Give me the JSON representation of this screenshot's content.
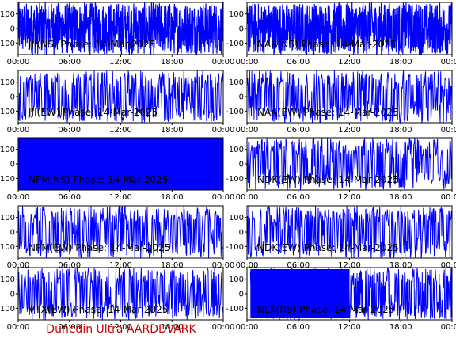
{
  "footer_text": "Dunedin Ultra AARDDVARK",
  "trace_color": "#0000ff",
  "frame_color": "#000000",
  "chart_data": [
    {
      "type": "line",
      "title": "JJI(NS) Phase: 14-Mar-2025",
      "x_ticks": [
        "00:00",
        "06:00",
        "12:00",
        "18:00",
        "00:00"
      ],
      "y_ticks": [
        "100",
        "0",
        "-100"
      ],
      "ylim": [
        -180,
        180
      ],
      "xlim_hours": [
        0,
        24
      ],
      "texture": "dense"
    },
    {
      "type": "line",
      "title": "NAA(NS) Phase: 14-Mar-2025",
      "x_ticks": [
        "00:00",
        "06:00",
        "12:00",
        "18:00",
        "00:00"
      ],
      "y_ticks": [
        "100",
        "0",
        "-100"
      ],
      "ylim": [
        -180,
        180
      ],
      "xlim_hours": [
        0,
        24
      ],
      "texture": "dense"
    },
    {
      "type": "line",
      "title": "JJI(EW) Phase: 14-Mar-2025",
      "x_ticks": [
        "00:00",
        "06:00",
        "12:00",
        "18:00",
        "00:00"
      ],
      "y_ticks": [
        "100",
        "0",
        "-100"
      ],
      "ylim": [
        -180,
        180
      ],
      "xlim_hours": [
        0,
        24
      ],
      "texture": "sparse"
    },
    {
      "type": "line",
      "title": "NAA(EW) Phase: 14-Mar-2025",
      "x_ticks": [
        "00:00",
        "06:00",
        "12:00",
        "18:00",
        "00:00"
      ],
      "y_ticks": [
        "100",
        "0",
        "-100"
      ],
      "ylim": [
        -180,
        180
      ],
      "xlim_hours": [
        0,
        24
      ],
      "texture": "sparse"
    },
    {
      "type": "line",
      "title": "NPM(NS) Phase: 14-Mar-2025",
      "x_ticks": [
        "00:00",
        "06:00",
        "12:00",
        "18:00",
        "00:00"
      ],
      "y_ticks": [
        "100",
        "0",
        "-100"
      ],
      "ylim": [
        -180,
        180
      ],
      "xlim_hours": [
        0,
        24
      ],
      "texture": "solid"
    },
    {
      "type": "line",
      "title": "NDK(EW) Phase: 14-Mar-2025",
      "x_ticks": [
        "00:00",
        "06:00",
        "12:00",
        "18:00",
        "00:00"
      ],
      "y_ticks": [
        "100",
        "0",
        "-100"
      ],
      "ylim": [
        -180,
        180
      ],
      "xlim_hours": [
        0,
        24
      ],
      "texture": "sparse"
    },
    {
      "type": "line",
      "title": "NPM(EW) Phase: 14-Mar-2025",
      "x_ticks": [
        "00:00",
        "06:00",
        "12:00",
        "18:00",
        "00:00"
      ],
      "y_ticks": [
        "100",
        "0",
        "-100"
      ],
      "ylim": [
        -180,
        180
      ],
      "xlim_hours": [
        0,
        24
      ],
      "texture": "sparse"
    },
    {
      "type": "line",
      "title": "NDK(EW) Phase: 14-Mar-2025",
      "x_ticks": [
        "00:00",
        "06:00",
        "12:00",
        "18:00",
        "00:00"
      ],
      "y_ticks": [
        "100",
        "0",
        "-100"
      ],
      "ylim": [
        -180,
        180
      ],
      "xlim_hours": [
        0,
        24
      ],
      "texture": "sparse"
    },
    {
      "type": "line",
      "title": "VTX(EW) Phase: 14-Mar-2025",
      "x_ticks": [
        "00:00",
        "06:00",
        "12:00",
        "18:00",
        "00:00"
      ],
      "y_ticks": [
        "100",
        "0",
        "-100"
      ],
      "ylim": [
        -180,
        180
      ],
      "xlim_hours": [
        0,
        24
      ],
      "texture": "sparse"
    },
    {
      "type": "line",
      "title": "NLK(NS) Phase: 14-Mar-2025",
      "x_ticks": [
        "00:00",
        "06:00",
        "12:00",
        "18:00",
        "00:00"
      ],
      "y_ticks": [
        "100",
        "0",
        "-100"
      ],
      "ylim": [
        -180,
        180
      ],
      "xlim_hours": [
        0,
        24
      ],
      "texture": "partial"
    }
  ]
}
